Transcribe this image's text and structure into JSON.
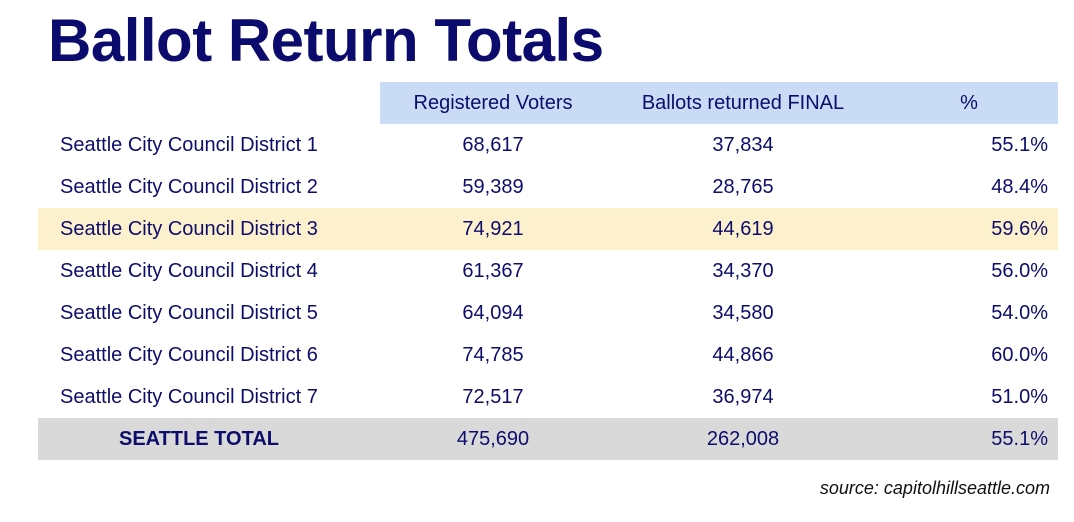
{
  "title": "Ballot Return Totals",
  "source": "source: capitolhillseattle.com",
  "colors": {
    "title": "#0b0b6e",
    "text": "#0d0d6b",
    "header_bg": "#c9dbf5",
    "highlight_bg": "#fdf0cc",
    "total_bg": "#d9d9d9"
  },
  "chart_data": {
    "type": "table",
    "title": "Ballot Return Totals",
    "columns": [
      "",
      "Registered Voters",
      "Ballots returned FINAL",
      "%"
    ],
    "rows": [
      {
        "name": "Seattle City Council District 1",
        "registered": "68,617",
        "returned": "37,834",
        "pct": "55.1%"
      },
      {
        "name": "Seattle City Council District 2",
        "registered": "59,389",
        "returned": "28,765",
        "pct": "48.4%"
      },
      {
        "name": "Seattle City Council District 3",
        "registered": "74,921",
        "returned": "44,619",
        "pct": "59.6%"
      },
      {
        "name": "Seattle City Council District 4",
        "registered": "61,367",
        "returned": "34,370",
        "pct": "56.0%"
      },
      {
        "name": "Seattle City Council District 5",
        "registered": "64,094",
        "returned": "34,580",
        "pct": "54.0%"
      },
      {
        "name": "Seattle City Council District 6",
        "registered": "74,785",
        "returned": "44,866",
        "pct": "60.0%"
      },
      {
        "name": "Seattle City Council District 7",
        "registered": "72,517",
        "returned": "36,974",
        "pct": "51.0%"
      }
    ],
    "highlighted_row": 2,
    "total": {
      "name": "SEATTLE TOTAL",
      "registered": "475,690",
      "returned": "262,008",
      "pct": "55.1%"
    }
  }
}
